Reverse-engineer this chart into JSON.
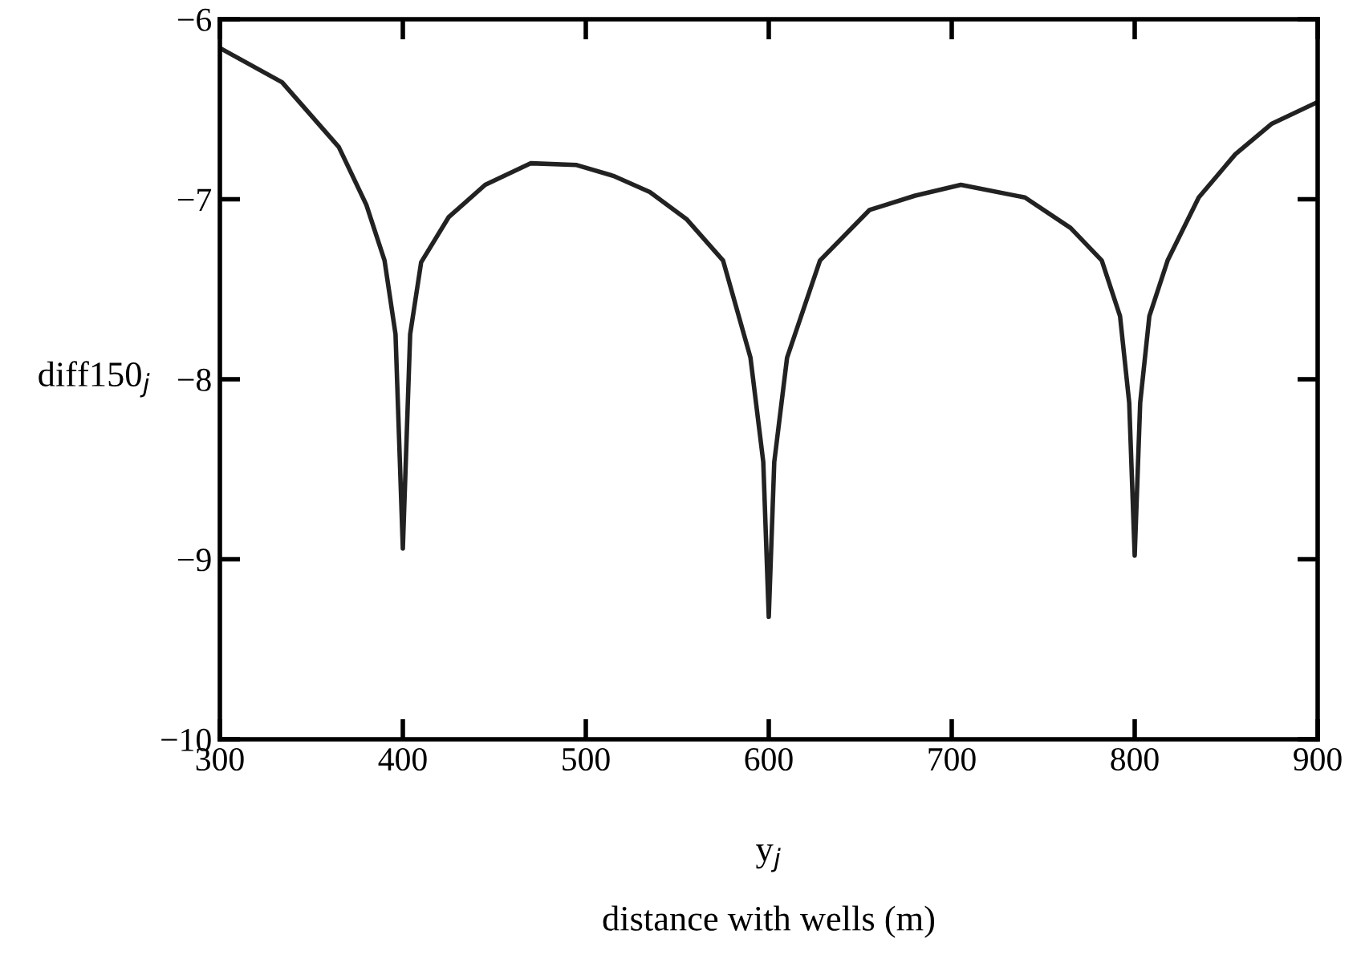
{
  "chart_data": {
    "type": "line",
    "x": [
      300,
      334,
      365,
      380,
      390,
      396,
      400,
      404,
      410,
      425,
      445,
      470,
      495,
      515,
      535,
      555,
      575,
      590,
      597,
      600,
      603,
      610,
      628,
      655,
      680,
      705,
      740,
      765,
      782,
      792,
      797,
      800,
      803,
      808,
      818,
      835,
      855,
      875,
      900
    ],
    "series": [
      {
        "color": "#222222",
        "values": [
          -6.16,
          -6.35,
          -6.71,
          -7.03,
          -7.34,
          -7.75,
          -8.94,
          -7.75,
          -7.35,
          -7.1,
          -6.92,
          -6.8,
          -6.81,
          -6.87,
          -6.96,
          -7.11,
          -7.34,
          -7.88,
          -8.46,
          -9.32,
          -8.46,
          -7.88,
          -7.34,
          -7.06,
          -6.98,
          -6.92,
          -6.99,
          -7.16,
          -7.34,
          -7.65,
          -8.13,
          -8.98,
          -8.13,
          -7.65,
          -7.34,
          -6.99,
          -6.75,
          -6.58,
          -6.46
        ]
      }
    ],
    "xlim": [
      300,
      900
    ],
    "xticks": [
      300,
      400,
      500,
      600,
      700,
      800,
      900
    ],
    "ylim": [
      -10,
      -6
    ],
    "yticks": [
      {
        "value": -10,
        "label": "−10"
      },
      {
        "value": -9,
        "label": "−9"
      },
      {
        "value": -8,
        "label": "−8"
      },
      {
        "value": -7,
        "label": "−7"
      },
      {
        "value": -6,
        "label": "−6"
      }
    ],
    "xlabel": "y$_{j}$",
    "ylabel": "diff150$_{j}$",
    "annotations": [
      "distance with wells (m)"
    ],
    "grid": false,
    "legend": false
  }
}
